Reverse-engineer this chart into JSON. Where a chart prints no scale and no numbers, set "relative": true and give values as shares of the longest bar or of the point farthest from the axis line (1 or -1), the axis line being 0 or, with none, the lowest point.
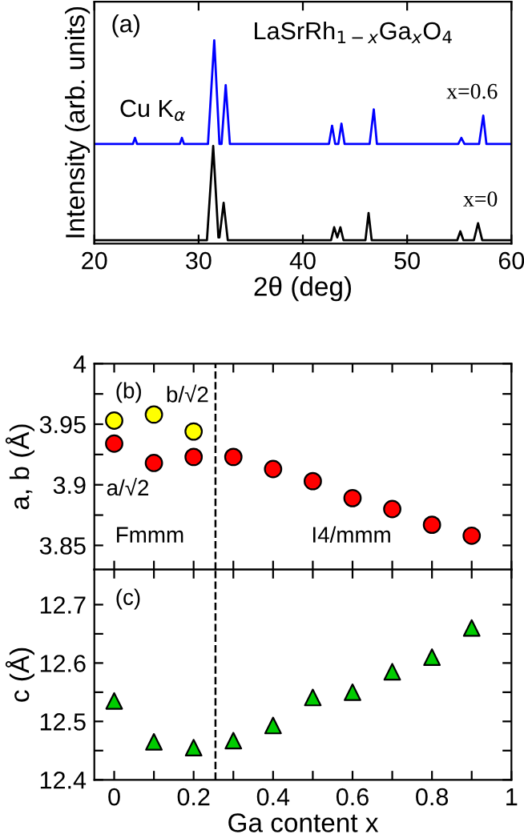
{
  "chart_data": [
    {
      "type": "line",
      "relative": true,
      "xlabel": "2θ (deg)",
      "ylabel": "Intensity (arb. units)",
      "xlim": [
        20,
        60
      ],
      "xticks": [
        20,
        30,
        40,
        50,
        60
      ],
      "tick_labels": "x",
      "annotations": [
        "(a)",
        "LaSrRh$_{1−x}$Ga$_{x}$O$_{4}$",
        "Cu K$_{α}$"
      ],
      "series": [
        {
          "name": "x=0.6",
          "color": "#0000ff",
          "x": [
            20,
            23.7,
            23.9,
            24.1,
            28.2,
            28.4,
            28.6,
            30.9,
            31.5,
            32.0,
            32.2,
            32.6,
            33.0,
            42.5,
            42.8,
            43.1,
            43.4,
            43.7,
            44.0,
            46.4,
            46.8,
            47.1,
            54.9,
            55.2,
            55.5,
            56.9,
            57.3,
            57.6,
            60
          ],
          "values": [
            0.49,
            0.49,
            0.52,
            0.49,
            0.49,
            0.52,
            0.49,
            0.49,
            1,
            0.49,
            0.49,
            0.78,
            0.49,
            0.49,
            0.58,
            0.49,
            0.49,
            0.59,
            0.49,
            0.49,
            0.66,
            0.49,
            0.49,
            0.52,
            0.49,
            0.49,
            0.63,
            0.49,
            0.49
          ]
        },
        {
          "name": "x=0",
          "color": "#000000",
          "x": [
            20,
            30.8,
            31.4,
            31.9,
            32.0,
            32.4,
            32.8,
            42.7,
            43.0,
            43.3,
            43.6,
            43.9,
            46.0,
            46.3,
            46.6,
            54.8,
            55.1,
            55.4,
            56.4,
            56.8,
            57.2,
            60
          ],
          "values": [
            0.016,
            0.016,
            0.48,
            0.03,
            0.03,
            0.2,
            0.016,
            0.016,
            0.08,
            0.03,
            0.08,
            0.016,
            0.016,
            0.15,
            0.016,
            0.016,
            0.06,
            0.016,
            0.016,
            0.1,
            0.016,
            0.016
          ]
        }
      ]
    },
    {
      "type": "scatter",
      "marker": "circle",
      "ylabel": "a, b (Å)",
      "xlim": [
        -0.05,
        1
      ],
      "ylim": [
        3.83,
        4.0
      ],
      "tick_labels": "y",
      "xticks": [
        {
          "value": 0,
          "label": null
        },
        {
          "value": 0.1,
          "label": null
        },
        {
          "value": 0.2,
          "label": null
        },
        {
          "value": 0.3,
          "label": null
        },
        {
          "value": 0.4,
          "label": null
        },
        {
          "value": 0.5,
          "label": null
        },
        {
          "value": 0.6,
          "label": null
        },
        {
          "value": 0.7,
          "label": null
        },
        {
          "value": 0.8,
          "label": null
        },
        {
          "value": 0.9,
          "label": null
        },
        {
          "value": 1,
          "label": null
        }
      ],
      "yticks": [
        3.85,
        {
          "value": 3.875,
          "label": null
        },
        3.9,
        {
          "value": 3.925,
          "label": null
        },
        3.95,
        {
          "value": 3.975,
          "label": null
        },
        4
      ],
      "annotations": [
        "(b)",
        "Fmmm",
        "I4/mmm"
      ],
      "ref_lines": [
        {
          "axis": "x",
          "value": 0.255,
          "label": null,
          "color": "#000000",
          "line_style": "dashed"
        }
      ],
      "series": [
        {
          "name": "a/√2",
          "color": "#ff0000",
          "x": [
            0,
            0.1,
            0.2,
            0.3,
            0.4,
            0.5,
            0.6,
            0.7,
            0.8,
            0.9
          ],
          "values": [
            3.934,
            3.918,
            3.923,
            3.923,
            3.913,
            3.903,
            3.889,
            3.88,
            3.867,
            3.858
          ]
        },
        {
          "name": "b/√2",
          "color": "#ffff00",
          "x": [
            0,
            0.1,
            0.2
          ],
          "values": [
            3.953,
            3.958,
            3.944
          ]
        }
      ]
    },
    {
      "type": "scatter",
      "marker": "triangle",
      "ylabel": "c (Å)",
      "xlabel": "Ga content x",
      "xlim": [
        -0.05,
        1
      ],
      "ylim": [
        12.4,
        12.76
      ],
      "xticks": [
        0,
        {
          "value": 0.1,
          "label": null
        },
        0.2,
        {
          "value": 0.3,
          "label": null
        },
        0.4,
        {
          "value": 0.5,
          "label": null
        },
        0.6,
        {
          "value": 0.7,
          "label": null
        },
        0.8,
        {
          "value": 0.9,
          "label": null
        },
        1
      ],
      "yticks": [
        12.4,
        {
          "value": 12.45,
          "label": null
        },
        12.5,
        {
          "value": 12.55,
          "label": null
        },
        12.6,
        {
          "value": 12.65,
          "label": null
        },
        12.7
      ],
      "annotations": [
        "(c)"
      ],
      "ref_lines": [
        {
          "axis": "x",
          "value": 0.255,
          "label": null,
          "color": "#000000",
          "line_style": "dashed"
        }
      ],
      "series": [
        {
          "color": "#00cc00",
          "x": [
            0,
            0.1,
            0.2,
            0.3,
            0.4,
            0.5,
            0.6,
            0.7,
            0.8,
            0.9
          ],
          "values": [
            12.535,
            12.465,
            12.455,
            12.467,
            12.493,
            12.541,
            12.55,
            12.585,
            12.61,
            12.66
          ]
        }
      ]
    }
  ]
}
